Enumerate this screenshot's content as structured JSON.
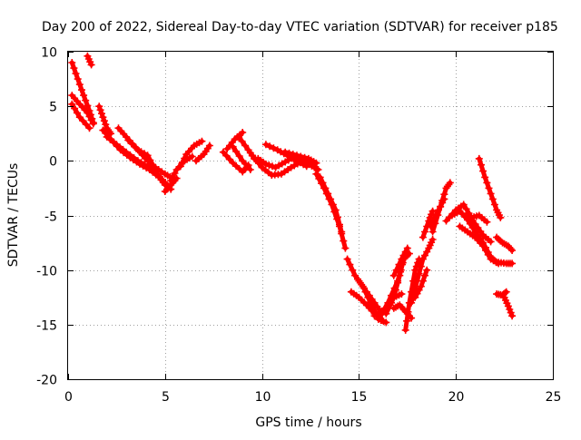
{
  "chart_data": {
    "type": "scatter",
    "title": "Day 200 of 2022, Sidereal Day-to-day VTEC variation (SDTVAR) for receiver p185",
    "xlabel": "GPS time / hours",
    "ylabel": "SDTVAR / TECUs",
    "xlim": [
      0,
      25
    ],
    "ylim": [
      -20,
      10
    ],
    "xticks": [
      "0",
      "5",
      "10",
      "15",
      "20",
      "25"
    ],
    "yticks": [
      "10",
      "5",
      "0",
      "-5",
      "-10",
      "-15",
      "-20"
    ],
    "grid": true,
    "marker": "plus",
    "series": [
      {
        "color": "#ff0000",
        "tracks": [
          [
            [
              0.2,
              9.0
            ],
            [
              0.5,
              7.5
            ],
            [
              0.8,
              6.0
            ],
            [
              1.1,
              4.6
            ],
            [
              1.3,
              3.5
            ]
          ],
          [
            [
              0.2,
              6.0
            ],
            [
              0.6,
              5.2
            ],
            [
              1.0,
              4.4
            ],
            [
              1.3,
              3.4
            ]
          ],
          [
            [
              0.2,
              5.2
            ],
            [
              0.6,
              4.0
            ],
            [
              1.1,
              3.0
            ]
          ],
          [
            [
              1.0,
              9.6
            ],
            [
              1.2,
              8.8
            ]
          ],
          [
            [
              1.6,
              5.0
            ],
            [
              1.8,
              4.0
            ],
            [
              2.0,
              3.0
            ],
            [
              2.2,
              2.5
            ]
          ],
          [
            [
              1.8,
              2.8
            ],
            [
              2.2,
              2.0
            ],
            [
              2.7,
              1.0
            ],
            [
              3.2,
              0.3
            ],
            [
              3.7,
              -0.3
            ],
            [
              4.2,
              -0.8
            ],
            [
              4.7,
              -1.5
            ],
            [
              5.0,
              -2.2
            ]
          ],
          [
            [
              2.0,
              2.2
            ],
            [
              2.5,
              1.5
            ],
            [
              3.0,
              0.8
            ],
            [
              3.6,
              0.0
            ],
            [
              4.1,
              -0.5
            ],
            [
              4.6,
              -1.2
            ],
            [
              5.0,
              -2.0
            ],
            [
              5.3,
              -2.6
            ]
          ],
          [
            [
              2.6,
              3.0
            ],
            [
              3.0,
              2.2
            ],
            [
              3.5,
              1.2
            ],
            [
              4.0,
              0.2
            ],
            [
              4.5,
              -0.6
            ],
            [
              5.0,
              -1.2
            ],
            [
              5.4,
              -1.6
            ]
          ],
          [
            [
              3.1,
              1.9
            ],
            [
              3.6,
              1.0
            ],
            [
              4.1,
              0.5
            ],
            [
              4.5,
              -0.8
            ]
          ],
          [
            [
              5.0,
              -2.8
            ],
            [
              5.3,
              -2.2
            ],
            [
              5.6,
              -1.6
            ]
          ],
          [
            [
              5.3,
              -1.8
            ],
            [
              5.6,
              -0.8
            ],
            [
              6.0,
              0.0
            ],
            [
              6.4,
              0.4
            ]
          ],
          [
            [
              5.8,
              -0.5
            ],
            [
              6.1,
              0.6
            ],
            [
              6.5,
              1.4
            ],
            [
              6.9,
              1.8
            ]
          ],
          [
            [
              6.6,
              0.0
            ],
            [
              7.0,
              0.6
            ],
            [
              7.3,
              1.4
            ]
          ],
          [
            [
              8.2,
              1.1
            ],
            [
              8.6,
              2.0
            ],
            [
              9.0,
              2.6
            ]
          ],
          [
            [
              8.0,
              0.8
            ],
            [
              8.5,
              -0.2
            ],
            [
              9.0,
              -1.0
            ],
            [
              9.3,
              -0.4
            ]
          ],
          [
            [
              8.5,
              1.3
            ],
            [
              9.0,
              0.0
            ],
            [
              9.4,
              -0.8
            ]
          ],
          [
            [
              8.8,
              2.2
            ],
            [
              9.3,
              1.0
            ],
            [
              9.6,
              0.2
            ]
          ],
          [
            [
              9.5,
              0.5
            ],
            [
              10.0,
              -0.6
            ],
            [
              10.5,
              -1.3
            ],
            [
              11.0,
              -1.2
            ],
            [
              11.5,
              -0.6
            ],
            [
              12.0,
              -0.1
            ],
            [
              12.4,
              0.0
            ]
          ],
          [
            [
              9.8,
              0.2
            ],
            [
              10.2,
              -0.3
            ],
            [
              10.7,
              -0.6
            ],
            [
              11.2,
              -0.1
            ],
            [
              11.7,
              0.4
            ],
            [
              12.2,
              0.0
            ],
            [
              12.6,
              -0.4
            ]
          ],
          [
            [
              10.2,
              1.5
            ],
            [
              10.8,
              1.0
            ],
            [
              11.3,
              0.5
            ],
            [
              11.8,
              0.0
            ],
            [
              12.3,
              -0.5
            ]
          ],
          [
            [
              11.2,
              0.8
            ],
            [
              11.8,
              0.5
            ],
            [
              12.4,
              0.2
            ],
            [
              12.8,
              -0.2
            ]
          ],
          [
            [
              12.3,
              -0.2
            ],
            [
              12.7,
              -0.6
            ],
            [
              12.9,
              -0.8
            ]
          ],
          [
            [
              12.8,
              -1.2
            ],
            [
              13.2,
              -2.5
            ],
            [
              13.6,
              -4.0
            ],
            [
              14.0,
              -6.0
            ],
            [
              14.3,
              -8.0
            ]
          ],
          [
            [
              13.0,
              -1.5
            ],
            [
              13.4,
              -3.0
            ],
            [
              13.8,
              -4.5
            ],
            [
              14.1,
              -6.5
            ]
          ],
          [
            [
              14.4,
              -9.0
            ],
            [
              14.8,
              -10.5
            ],
            [
              15.2,
              -11.5
            ],
            [
              15.6,
              -13.0
            ],
            [
              16.0,
              -14.5
            ],
            [
              16.4,
              -14.8
            ]
          ],
          [
            [
              14.6,
              -12.0
            ],
            [
              15.0,
              -12.5
            ],
            [
              15.4,
              -13.2
            ],
            [
              15.8,
              -14.0
            ],
            [
              16.2,
              -14.6
            ]
          ],
          [
            [
              15.0,
              -11.0
            ],
            [
              15.4,
              -12.0
            ],
            [
              15.8,
              -13.0
            ],
            [
              16.2,
              -14.0
            ],
            [
              16.6,
              -13.2
            ]
          ],
          [
            [
              15.8,
              -14.2
            ],
            [
              16.3,
              -13.8
            ],
            [
              16.8,
              -12.5
            ],
            [
              17.2,
              -12.2
            ]
          ],
          [
            [
              16.0,
              -14.5
            ],
            [
              16.5,
              -13.0
            ],
            [
              17.0,
              -11.0
            ],
            [
              17.4,
              -8.5
            ]
          ],
          [
            [
              16.4,
              -14.0
            ],
            [
              16.8,
              -12.5
            ],
            [
              17.1,
              -10.5
            ],
            [
              17.3,
              -9.0
            ],
            [
              17.6,
              -8.5
            ]
          ],
          [
            [
              16.8,
              -13.5
            ],
            [
              17.1,
              -13.2
            ],
            [
              17.4,
              -13.8
            ],
            [
              17.7,
              -14.4
            ]
          ],
          [
            [
              16.8,
              -10.5
            ],
            [
              17.2,
              -9.0
            ],
            [
              17.5,
              -8.0
            ]
          ],
          [
            [
              17.4,
              -15.5
            ],
            [
              17.6,
              -13.0
            ],
            [
              17.9,
              -10.0
            ],
            [
              18.1,
              -9.0
            ]
          ],
          [
            [
              17.7,
              -13.0
            ],
            [
              18.0,
              -11.0
            ],
            [
              18.3,
              -9.0
            ],
            [
              18.6,
              -8.0
            ],
            [
              18.8,
              -7.2
            ]
          ],
          [
            [
              17.9,
              -12.5
            ],
            [
              18.2,
              -11.5
            ],
            [
              18.5,
              -10.0
            ]
          ],
          [
            [
              18.3,
              -7.0
            ],
            [
              18.6,
              -5.5
            ],
            [
              18.8,
              -4.6
            ]
          ],
          [
            [
              18.7,
              -6.0
            ],
            [
              19.1,
              -4.5
            ],
            [
              19.4,
              -3.5
            ]
          ],
          [
            [
              18.8,
              -6.5
            ],
            [
              19.2,
              -4.2
            ],
            [
              19.5,
              -2.5
            ],
            [
              19.7,
              -2.0
            ]
          ],
          [
            [
              19.5,
              -5.5
            ],
            [
              20.0,
              -4.5
            ],
            [
              20.4,
              -4.0
            ],
            [
              20.8,
              -5.2
            ],
            [
              21.2,
              -5.0
            ],
            [
              21.6,
              -5.6
            ]
          ],
          [
            [
              19.8,
              -5.0
            ],
            [
              20.2,
              -4.6
            ],
            [
              20.6,
              -5.4
            ],
            [
              21.0,
              -6.5
            ],
            [
              21.4,
              -7.5
            ],
            [
              21.8,
              -8.8
            ],
            [
              22.1,
              -9.3
            ]
          ],
          [
            [
              20.2,
              -6.0
            ],
            [
              20.6,
              -6.5
            ],
            [
              21.0,
              -7.0
            ],
            [
              21.4,
              -7.8
            ],
            [
              21.8,
              -9.0
            ],
            [
              22.2,
              -9.4
            ]
          ],
          [
            [
              20.6,
              -4.8
            ],
            [
              21.0,
              -5.8
            ],
            [
              21.4,
              -6.8
            ],
            [
              21.8,
              -7.4
            ]
          ],
          [
            [
              21.2,
              0.2
            ],
            [
              21.5,
              -1.5
            ],
            [
              21.8,
              -3.0
            ],
            [
              22.1,
              -4.5
            ],
            [
              22.3,
              -5.2
            ]
          ],
          [
            [
              22.2,
              -9.3
            ],
            [
              22.6,
              -9.4
            ],
            [
              22.9,
              -9.4
            ]
          ],
          [
            [
              22.1,
              -7.0
            ],
            [
              22.4,
              -7.5
            ],
            [
              22.7,
              -7.8
            ],
            [
              22.9,
              -8.2
            ]
          ],
          [
            [
              22.1,
              -12.2
            ],
            [
              22.4,
              -12.3
            ],
            [
              22.6,
              -12.0
            ]
          ],
          [
            [
              22.5,
              -12.5
            ],
            [
              22.7,
              -13.3
            ],
            [
              22.9,
              -14.2
            ]
          ]
        ]
      }
    ]
  }
}
